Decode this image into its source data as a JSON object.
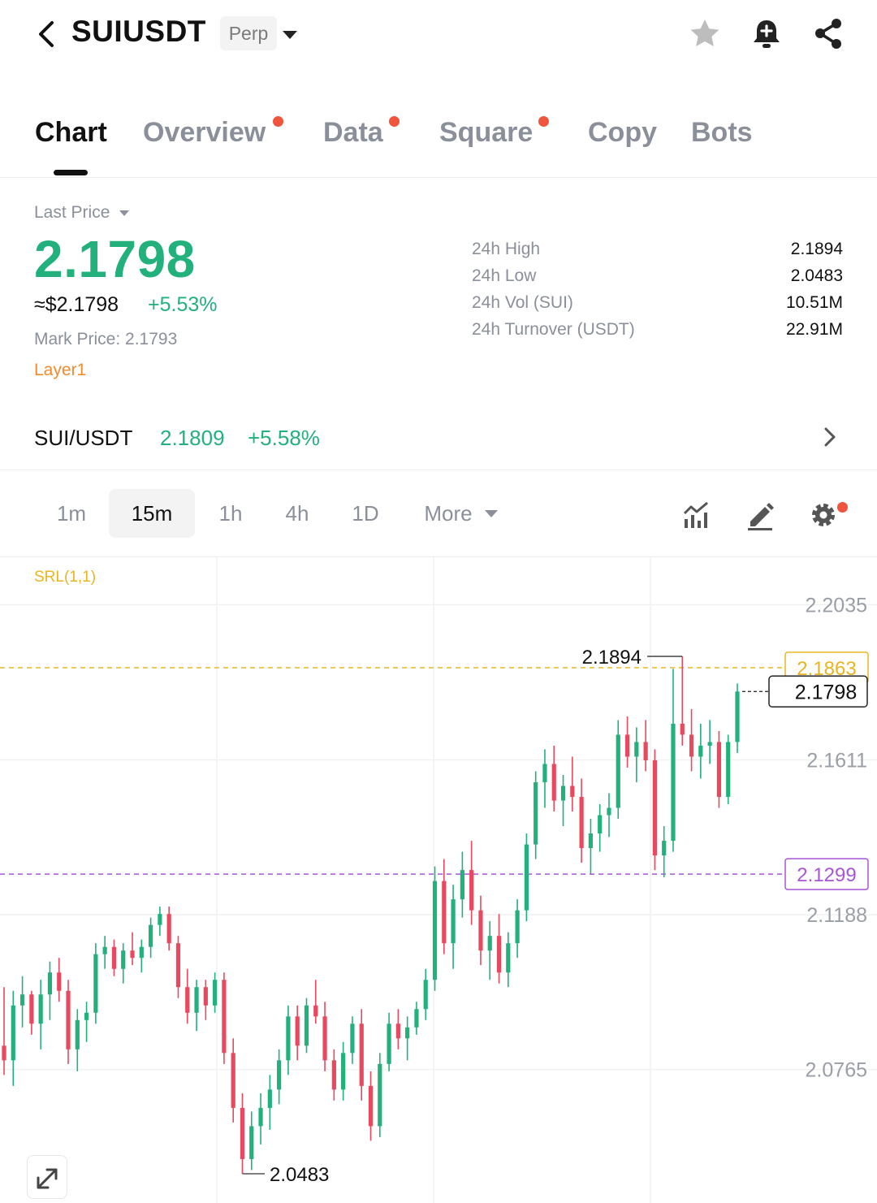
{
  "header": {
    "symbol": "SUIUSDT",
    "contract_type": "Perp",
    "icons": [
      "back-arrow-icon",
      "star-icon",
      "bell-add-icon",
      "share-icon"
    ]
  },
  "tabs": [
    {
      "label": "Chart",
      "active": true,
      "dot": false
    },
    {
      "label": "Overview",
      "active": false,
      "dot": true
    },
    {
      "label": "Data",
      "active": false,
      "dot": true
    },
    {
      "label": "Square",
      "active": false,
      "dot": true
    },
    {
      "label": "Copy",
      "active": false,
      "dot": false
    },
    {
      "label": "Bots",
      "active": false,
      "dot": false
    }
  ],
  "ticker": {
    "last_price_label": "Last Price",
    "last_price": "2.1798",
    "usd_price": "≈$2.1798",
    "change": "+5.53%",
    "mark_price": "Mark Price: 2.1793",
    "tag": "Layer1",
    "stats": [
      {
        "label": "24h High",
        "value": "2.1894"
      },
      {
        "label": "24h Low",
        "value": "2.0483"
      },
      {
        "label": "24h Vol (SUI)",
        "value": "10.51M"
      },
      {
        "label": "24h Turnover (USDT)",
        "value": "22.91M"
      }
    ]
  },
  "spot": {
    "pair": "SUI/USDT",
    "price": "2.1809",
    "change": "+5.58%"
  },
  "intervals": {
    "items": [
      "1m",
      "15m",
      "1h",
      "4h",
      "1D"
    ],
    "active": "15m",
    "more_label": "More"
  },
  "colors": {
    "up": "#22b07d",
    "down": "#e8495e",
    "accent_yellow": "#e8b520",
    "accent_purple": "#a855d6"
  },
  "chart_data": {
    "type": "candlestick",
    "indicator": "SRL(1,1)",
    "y_ticks": [
      "2.2035",
      "2.1611",
      "2.1188",
      "2.0765"
    ],
    "ylim": [
      2.04,
      2.2165
    ],
    "high_label": "2.1894",
    "low_label": "2.0483",
    "current_price_label": "2.1798",
    "level_labels": [
      {
        "value": "2.1863",
        "color": "#e8b520"
      },
      {
        "value": "2.1299",
        "color": "#a855d6"
      }
    ],
    "candles": [
      [
        2.083,
        2.099,
        2.075,
        2.079
      ],
      [
        2.079,
        2.098,
        2.072,
        2.094
      ],
      [
        2.094,
        2.102,
        2.088,
        2.097
      ],
      [
        2.097,
        2.098,
        2.086,
        2.089
      ],
      [
        2.089,
        2.101,
        2.082,
        2.097
      ],
      [
        2.097,
        2.106,
        2.09,
        2.103
      ],
      [
        2.103,
        2.107,
        2.095,
        2.098
      ],
      [
        2.098,
        2.101,
        2.078,
        2.082
      ],
      [
        2.082,
        2.093,
        2.076,
        2.09
      ],
      [
        2.09,
        2.095,
        2.084,
        2.092
      ],
      [
        2.092,
        2.111,
        2.089,
        2.108
      ],
      [
        2.108,
        2.113,
        2.104,
        2.11
      ],
      [
        2.11,
        2.112,
        2.102,
        2.104
      ],
      [
        2.104,
        2.111,
        2.1,
        2.109
      ],
      [
        2.109,
        2.114,
        2.105,
        2.107
      ],
      [
        2.107,
        2.112,
        2.103,
        2.11
      ],
      [
        2.11,
        2.118,
        2.107,
        2.116
      ],
      [
        2.116,
        2.121,
        2.113,
        2.119
      ],
      [
        2.119,
        2.121,
        2.109,
        2.111
      ],
      [
        2.111,
        2.113,
        2.096,
        2.099
      ],
      [
        2.099,
        2.104,
        2.089,
        2.092
      ],
      [
        2.092,
        2.101,
        2.087,
        2.099
      ],
      [
        2.099,
        2.101,
        2.09,
        2.094
      ],
      [
        2.094,
        2.103,
        2.092,
        2.101
      ],
      [
        2.101,
        2.103,
        2.078,
        2.081
      ],
      [
        2.081,
        2.085,
        2.062,
        2.066
      ],
      [
        2.066,
        2.07,
        2.048,
        2.052
      ],
      [
        2.052,
        2.065,
        2.049,
        2.061
      ],
      [
        2.061,
        2.07,
        2.056,
        2.066
      ],
      [
        2.066,
        2.075,
        2.06,
        2.071
      ],
      [
        2.071,
        2.082,
        2.067,
        2.079
      ],
      [
        2.079,
        2.094,
        2.075,
        2.091
      ],
      [
        2.091,
        2.094,
        2.079,
        2.083
      ],
      [
        2.083,
        2.096,
        2.081,
        2.094
      ],
      [
        2.094,
        2.101,
        2.089,
        2.091
      ],
      [
        2.091,
        2.095,
        2.076,
        2.079
      ],
      [
        2.079,
        2.082,
        2.068,
        2.071
      ],
      [
        2.071,
        2.084,
        2.068,
        2.081
      ],
      [
        2.081,
        2.091,
        2.078,
        2.089
      ],
      [
        2.089,
        2.093,
        2.068,
        2.072
      ],
      [
        2.072,
        2.076,
        2.057,
        2.061
      ],
      [
        2.061,
        2.081,
        2.058,
        2.078
      ],
      [
        2.078,
        2.092,
        2.076,
        2.089
      ],
      [
        2.089,
        2.093,
        2.082,
        2.085
      ],
      [
        2.085,
        2.091,
        2.079,
        2.088
      ],
      [
        2.088,
        2.095,
        2.086,
        2.093
      ],
      [
        2.093,
        2.104,
        2.09,
        2.101
      ],
      [
        2.101,
        2.132,
        2.098,
        2.128
      ],
      [
        2.128,
        2.134,
        2.108,
        2.111
      ],
      [
        2.111,
        2.127,
        2.104,
        2.123
      ],
      [
        2.123,
        2.136,
        2.118,
        2.131
      ],
      [
        2.131,
        2.139,
        2.116,
        2.12
      ],
      [
        2.12,
        2.124,
        2.105,
        2.109
      ],
      [
        2.109,
        2.117,
        2.101,
        2.113
      ],
      [
        2.113,
        2.119,
        2.1,
        2.103
      ],
      [
        2.103,
        2.114,
        2.099,
        2.111
      ],
      [
        2.111,
        2.123,
        2.107,
        2.12
      ],
      [
        2.12,
        2.141,
        2.117,
        2.138
      ],
      [
        2.138,
        2.158,
        2.134,
        2.155
      ],
      [
        2.155,
        2.164,
        2.148,
        2.16
      ],
      [
        2.16,
        2.165,
        2.147,
        2.15
      ],
      [
        2.15,
        2.157,
        2.143,
        2.154
      ],
      [
        2.154,
        2.162,
        2.147,
        2.151
      ],
      [
        2.151,
        2.156,
        2.133,
        2.137
      ],
      [
        2.137,
        2.145,
        2.13,
        2.141
      ],
      [
        2.141,
        2.149,
        2.136,
        2.146
      ],
      [
        2.146,
        2.152,
        2.14,
        2.148
      ],
      [
        2.148,
        2.172,
        2.145,
        2.168
      ],
      [
        2.168,
        2.173,
        2.159,
        2.162
      ],
      [
        2.162,
        2.17,
        2.155,
        2.166
      ],
      [
        2.166,
        2.172,
        2.158,
        2.161
      ],
      [
        2.161,
        2.164,
        2.131,
        2.135
      ],
      [
        2.135,
        2.143,
        2.129,
        2.139
      ],
      [
        2.139,
        2.186,
        2.136,
        2.171
      ],
      [
        2.171,
        2.1894,
        2.165,
        2.168
      ],
      [
        2.168,
        2.175,
        2.158,
        2.162
      ],
      [
        2.162,
        2.171,
        2.156,
        2.165
      ],
      [
        2.165,
        2.172,
        2.16,
        2.166
      ],
      [
        2.166,
        2.169,
        2.148,
        2.151
      ],
      [
        2.151,
        2.168,
        2.149,
        2.166
      ],
      [
        2.166,
        2.182,
        2.163,
        2.1798
      ]
    ]
  }
}
